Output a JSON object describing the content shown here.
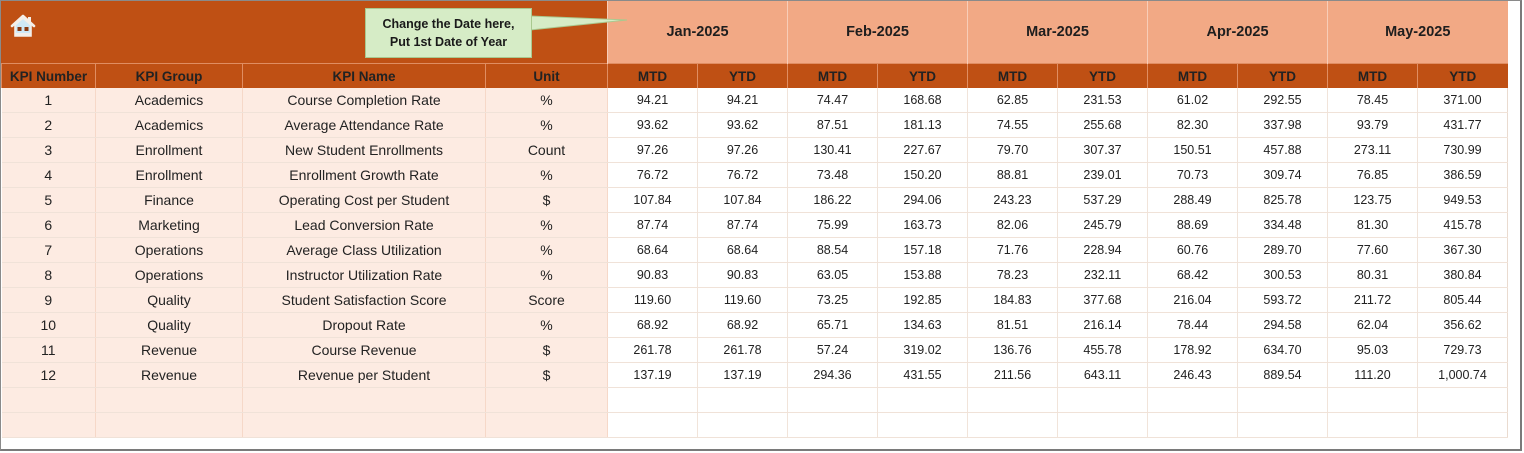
{
  "callout": {
    "line1": "Change the Date here,",
    "line2": "Put 1st Date of Year"
  },
  "icons": {
    "home": "home-icon"
  },
  "colors": {
    "header_dark": "#bf5014",
    "header_light": "#f2a985",
    "left_fill": "#fdebe2",
    "callout_fill": "#d6ecc6"
  },
  "months": [
    "Jan-2025",
    "Feb-2025",
    "Mar-2025",
    "Apr-2025",
    "May-2025"
  ],
  "headers": {
    "kpi_number": "KPI Number",
    "kpi_group": "KPI Group",
    "kpi_name": "KPI Name",
    "unit": "Unit",
    "mtd": "MTD",
    "ytd": "YTD"
  },
  "rows": [
    {
      "num": "1",
      "group": "Academics",
      "name": "Course Completion Rate",
      "unit": "%",
      "vals": [
        "94.21",
        "94.21",
        "74.47",
        "168.68",
        "62.85",
        "231.53",
        "61.02",
        "292.55",
        "78.45",
        "371.00"
      ]
    },
    {
      "num": "2",
      "group": "Academics",
      "name": "Average Attendance Rate",
      "unit": "%",
      "vals": [
        "93.62",
        "93.62",
        "87.51",
        "181.13",
        "74.55",
        "255.68",
        "82.30",
        "337.98",
        "93.79",
        "431.77"
      ]
    },
    {
      "num": "3",
      "group": "Enrollment",
      "name": "New Student Enrollments",
      "unit": "Count",
      "vals": [
        "97.26",
        "97.26",
        "130.41",
        "227.67",
        "79.70",
        "307.37",
        "150.51",
        "457.88",
        "273.11",
        "730.99"
      ]
    },
    {
      "num": "4",
      "group": "Enrollment",
      "name": "Enrollment Growth Rate",
      "unit": "%",
      "vals": [
        "76.72",
        "76.72",
        "73.48",
        "150.20",
        "88.81",
        "239.01",
        "70.73",
        "309.74",
        "76.85",
        "386.59"
      ]
    },
    {
      "num": "5",
      "group": "Finance",
      "name": "Operating Cost per Student",
      "unit": "$",
      "vals": [
        "107.84",
        "107.84",
        "186.22",
        "294.06",
        "243.23",
        "537.29",
        "288.49",
        "825.78",
        "123.75",
        "949.53"
      ]
    },
    {
      "num": "6",
      "group": "Marketing",
      "name": "Lead Conversion Rate",
      "unit": "%",
      "vals": [
        "87.74",
        "87.74",
        "75.99",
        "163.73",
        "82.06",
        "245.79",
        "88.69",
        "334.48",
        "81.30",
        "415.78"
      ]
    },
    {
      "num": "7",
      "group": "Operations",
      "name": "Average Class Utilization",
      "unit": "%",
      "vals": [
        "68.64",
        "68.64",
        "88.54",
        "157.18",
        "71.76",
        "228.94",
        "60.76",
        "289.70",
        "77.60",
        "367.30"
      ]
    },
    {
      "num": "8",
      "group": "Operations",
      "name": "Instructor Utilization Rate",
      "unit": "%",
      "vals": [
        "90.83",
        "90.83",
        "63.05",
        "153.88",
        "78.23",
        "232.11",
        "68.42",
        "300.53",
        "80.31",
        "380.84"
      ]
    },
    {
      "num": "9",
      "group": "Quality",
      "name": "Student Satisfaction Score",
      "unit": "Score",
      "vals": [
        "119.60",
        "119.60",
        "73.25",
        "192.85",
        "184.83",
        "377.68",
        "216.04",
        "593.72",
        "211.72",
        "805.44"
      ]
    },
    {
      "num": "10",
      "group": "Quality",
      "name": "Dropout Rate",
      "unit": "%",
      "vals": [
        "68.92",
        "68.92",
        "65.71",
        "134.63",
        "81.51",
        "216.14",
        "78.44",
        "294.58",
        "62.04",
        "356.62"
      ]
    },
    {
      "num": "11",
      "group": "Revenue",
      "name": "Course Revenue",
      "unit": "$",
      "vals": [
        "261.78",
        "261.78",
        "57.24",
        "319.02",
        "136.76",
        "455.78",
        "178.92",
        "634.70",
        "95.03",
        "729.73"
      ]
    },
    {
      "num": "12",
      "group": "Revenue",
      "name": "Revenue per Student",
      "unit": "$",
      "vals": [
        "137.19",
        "137.19",
        "294.36",
        "431.55",
        "211.56",
        "643.11",
        "246.43",
        "889.54",
        "111.20",
        "1,000.74"
      ]
    },
    {
      "num": "",
      "group": "",
      "name": "",
      "unit": "",
      "vals": [
        "",
        "",
        "",
        "",
        "",
        "",
        "",
        "",
        "",
        ""
      ]
    },
    {
      "num": "",
      "group": "",
      "name": "",
      "unit": "",
      "vals": [
        "",
        "",
        "",
        "",
        "",
        "",
        "",
        "",
        "",
        ""
      ]
    }
  ]
}
